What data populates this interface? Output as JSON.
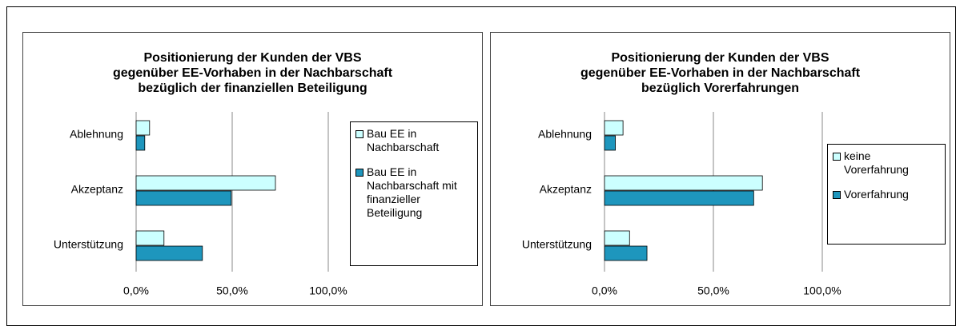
{
  "chart_data": [
    {
      "type": "bar",
      "orientation": "horizontal",
      "title": "Positionierung der Kunden der VBS\ngegenüber EE-Vorhaben in der Nachbarschaft\nbezüglich der finanziellen Beteiligung",
      "categories": [
        "Ablehnung",
        "Akzeptanz",
        "Unterstützung"
      ],
      "series": [
        {
          "name": "Bau EE in Nachbarschaft",
          "color": "#ccffff",
          "values": [
            7,
            72.5,
            14.5
          ]
        },
        {
          "name": "Bau EE in Nachbarschaft mit finanzieller Beteiligung",
          "color": "#1e96bd",
          "values": [
            4.5,
            49.5,
            34.5
          ]
        }
      ],
      "xlim": [
        0,
        100
      ],
      "xticks": [
        {
          "value": 0,
          "label": "0,0%"
        },
        {
          "value": 50,
          "label": "50,0%"
        },
        {
          "value": 100,
          "label": "100,0%"
        }
      ],
      "grid": true,
      "legend": "right"
    },
    {
      "type": "bar",
      "orientation": "horizontal",
      "title": "Positionierung der Kunden der VBS\ngegenüber EE-Vorhaben in der Nachbarschaft\nbezüglich Vorerfahrungen",
      "categories": [
        "Ablehnung",
        "Akzeptanz",
        "Unterstützung"
      ],
      "series": [
        {
          "name": "keine Vorerfahrung",
          "color": "#ccffff",
          "values": [
            8.5,
            72.5,
            11.5
          ]
        },
        {
          "name": "Vorerfahrung",
          "color": "#1e96bd",
          "values": [
            5,
            68.5,
            19.5
          ]
        }
      ],
      "xlim": [
        0,
        100
      ],
      "xticks": [
        {
          "value": 0,
          "label": "0,0%"
        },
        {
          "value": 50,
          "label": "50,0%"
        },
        {
          "value": 100,
          "label": "100,0%"
        }
      ],
      "grid": true,
      "legend": "right"
    }
  ]
}
